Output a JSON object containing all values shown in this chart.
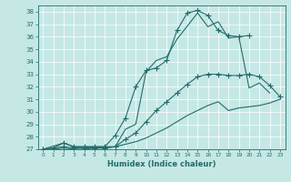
{
  "xlabel": "Humidex (Indice chaleur)",
  "ylabel": "",
  "xlim": [
    -0.5,
    23.5
  ],
  "ylim": [
    27,
    38.5
  ],
  "xticks": [
    0,
    1,
    2,
    3,
    4,
    5,
    6,
    7,
    8,
    9,
    10,
    11,
    12,
    13,
    14,
    15,
    16,
    17,
    18,
    19,
    20,
    21,
    22,
    23
  ],
  "yticks": [
    27,
    28,
    29,
    30,
    31,
    32,
    33,
    34,
    35,
    36,
    37,
    38
  ],
  "bg_color": "#c5e8e5",
  "line_color": "#236b6b",
  "grid_color": "#aed8d5",
  "lines": [
    {
      "x": [
        0,
        1,
        2,
        3,
        4,
        5,
        6,
        7,
        8,
        9,
        10,
        11,
        12,
        13,
        14,
        15,
        16,
        17,
        18,
        19,
        20
      ],
      "y": [
        27,
        27.1,
        27.5,
        27.2,
        27.2,
        27.2,
        27.2,
        28.1,
        29.5,
        32.0,
        33.3,
        33.5,
        34.1,
        36.5,
        37.9,
        38.1,
        37.7,
        36.5,
        36.1,
        36.0,
        36.1
      ],
      "has_markers": true
    },
    {
      "x": [
        0,
        2,
        3,
        4,
        5,
        6,
        7,
        8,
        9,
        10,
        11,
        12,
        13,
        15,
        16,
        17,
        18,
        19,
        20,
        21,
        22
      ],
      "y": [
        27,
        27.5,
        27.2,
        27.2,
        27.2,
        27.2,
        27.2,
        28.6,
        29.0,
        33.2,
        34.1,
        34.4,
        35.8,
        37.9,
        36.8,
        37.2,
        35.9,
        36.0,
        31.9,
        32.3,
        31.5
      ],
      "has_markers": false
    },
    {
      "x": [
        0,
        2,
        3,
        4,
        5,
        6,
        7,
        8,
        9,
        10,
        11,
        12,
        13,
        14,
        15,
        16,
        17,
        18,
        19,
        20,
        21,
        22,
        23
      ],
      "y": [
        27,
        27.2,
        27.1,
        27.1,
        27.1,
        27.1,
        27.2,
        27.8,
        28.3,
        29.2,
        30.1,
        30.8,
        31.5,
        32.2,
        32.8,
        33.0,
        33.0,
        32.9,
        32.9,
        33.0,
        32.8,
        32.1,
        31.2
      ],
      "has_markers": true
    },
    {
      "x": [
        0,
        1,
        2,
        3,
        4,
        5,
        6,
        7,
        8,
        9,
        10,
        11,
        12,
        13,
        14,
        15,
        16,
        17,
        18,
        19,
        20,
        21,
        22,
        23
      ],
      "y": [
        27,
        27.0,
        27.1,
        27.0,
        27.0,
        27.1,
        27.1,
        27.2,
        27.4,
        27.6,
        27.9,
        28.3,
        28.7,
        29.2,
        29.7,
        30.1,
        30.5,
        30.8,
        30.1,
        30.3,
        30.4,
        30.5,
        30.7,
        31.0
      ],
      "has_markers": false
    }
  ]
}
